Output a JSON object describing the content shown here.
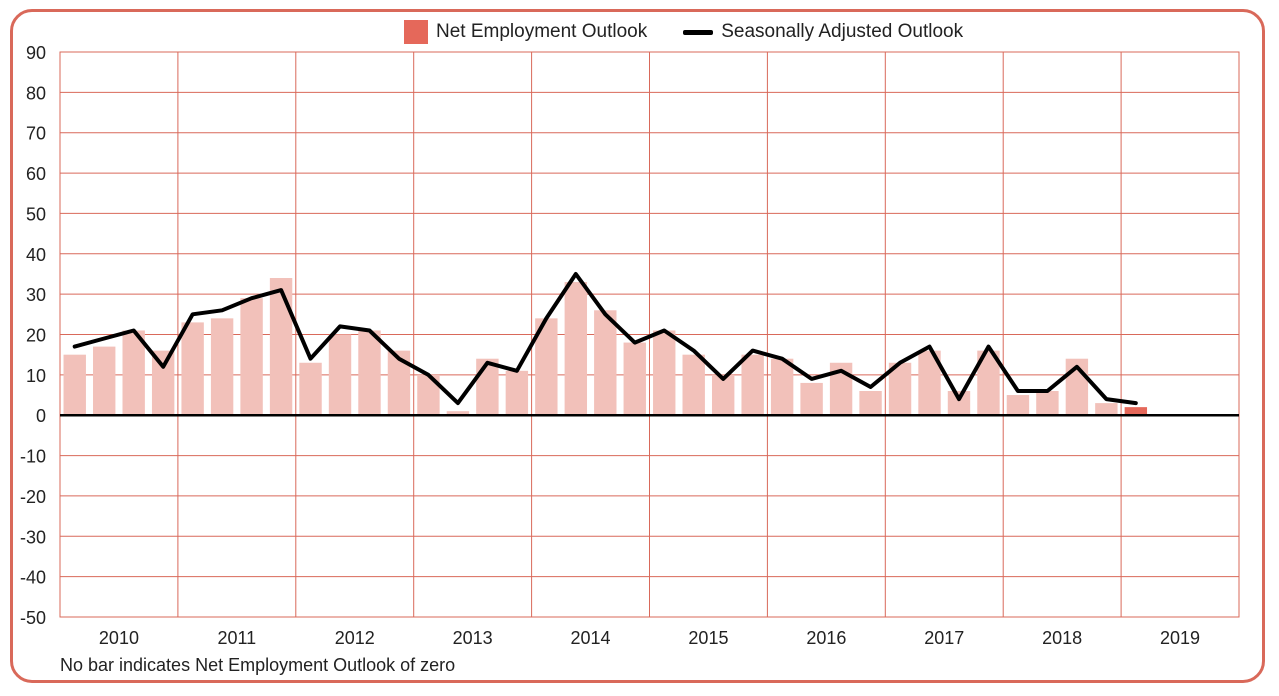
{
  "chart_data": {
    "type": "bar",
    "title": "",
    "xlabel": "",
    "ylabel": "",
    "ylim": [
      -50,
      90
    ],
    "yticks": [
      90,
      80,
      70,
      60,
      50,
      40,
      30,
      20,
      10,
      0,
      -10,
      -20,
      -30,
      -40,
      -50
    ],
    "ytick_labels": [
      "90",
      "80",
      "70",
      "60",
      "50",
      "40",
      "30",
      "20",
      "10",
      "0",
      "-10",
      "-20",
      "-30",
      "-40",
      "-50"
    ],
    "years": [
      "2010",
      "2011",
      "2012",
      "2013",
      "2014",
      "2015",
      "2016",
      "2017",
      "2018",
      "2019"
    ],
    "grid": true,
    "legend_position": "top-center",
    "legend": {
      "bar_label": "Net Employment Outlook",
      "line_label": "Seasonally Adjusted Outlook"
    },
    "colors": {
      "bar": "#f2c1ba",
      "bar_latest": "#e5685a",
      "line": "#000000",
      "grid": "#d9695a",
      "frame": "#d9695a",
      "zero_line": "#000000"
    },
    "series": [
      {
        "name": "Net Employment Outlook",
        "kind": "bar",
        "values": [
          15,
          17,
          21,
          16,
          23,
          24,
          29,
          34,
          13,
          20,
          21,
          16,
          10,
          1,
          14,
          11,
          24,
          33,
          26,
          18,
          21,
          15,
          10,
          15,
          14,
          8,
          13,
          6,
          13,
          16,
          6,
          16,
          5,
          6,
          14,
          3,
          2
        ]
      },
      {
        "name": "Seasonally Adjusted Outlook",
        "kind": "line",
        "values": [
          17,
          19,
          21,
          12,
          25,
          26,
          29,
          31,
          14,
          22,
          21,
          14,
          10,
          3,
          13,
          11,
          24,
          35,
          25,
          18,
          21,
          16,
          9,
          16,
          14,
          9,
          11,
          7,
          13,
          17,
          4,
          17,
          6,
          6,
          12,
          4,
          3
        ]
      }
    ]
  },
  "footnote": "No bar indicates Net Employment Outlook of zero"
}
